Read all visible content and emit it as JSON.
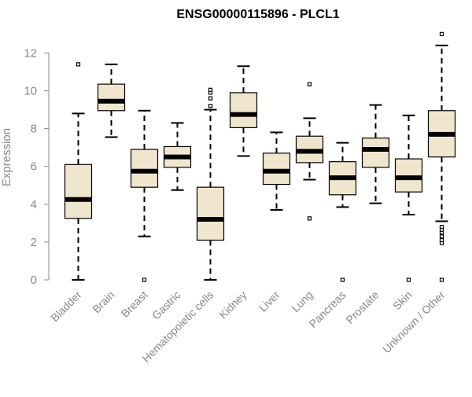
{
  "chart_data": {
    "type": "boxplot",
    "title": "ENSG00000115896 - PLCL1",
    "xlabel": "",
    "ylabel": "Expression",
    "ylim": [
      0,
      13
    ],
    "yticks": [
      0,
      2,
      4,
      6,
      8,
      10,
      12
    ],
    "ytick_labels": [
      "0",
      "2",
      "4",
      "6",
      "8",
      "10",
      "12"
    ],
    "categories": [
      "Bladder",
      "Brain",
      "Breast",
      "Gastric",
      "Hematopoietic cells",
      "Kidney",
      "Liver",
      "Lung",
      "Pancreas",
      "Prostate",
      "Skin",
      "Unknown / Other"
    ],
    "boxes": [
      {
        "name": "Bladder",
        "whisker_low": 0.0,
        "q1": 3.25,
        "median": 4.25,
        "q3": 6.1,
        "whisker_high": 8.8,
        "outliers": [
          11.4
        ]
      },
      {
        "name": "Brain",
        "whisker_low": 7.55,
        "q1": 8.95,
        "median": 9.45,
        "q3": 10.35,
        "whisker_high": 11.4,
        "outliers": []
      },
      {
        "name": "Breast",
        "whisker_low": 2.3,
        "q1": 4.9,
        "median": 5.75,
        "q3": 6.9,
        "whisker_high": 8.95,
        "outliers": [
          0.0
        ]
      },
      {
        "name": "Gastric",
        "whisker_low": 4.75,
        "q1": 5.95,
        "median": 6.5,
        "q3": 7.05,
        "whisker_high": 8.3,
        "outliers": []
      },
      {
        "name": "Hematopoietic cells",
        "whisker_low": 0.0,
        "q1": 2.1,
        "median": 3.2,
        "q3": 4.9,
        "whisker_high": 9.0,
        "outliers": [
          9.2,
          9.6,
          9.9,
          10.05
        ]
      },
      {
        "name": "Kidney",
        "whisker_low": 6.55,
        "q1": 8.05,
        "median": 8.75,
        "q3": 9.9,
        "whisker_high": 11.3,
        "outliers": []
      },
      {
        "name": "Liver",
        "whisker_low": 3.7,
        "q1": 5.05,
        "median": 5.75,
        "q3": 6.7,
        "whisker_high": 7.8,
        "outliers": []
      },
      {
        "name": "Lung",
        "whisker_low": 5.3,
        "q1": 6.2,
        "median": 6.8,
        "q3": 7.6,
        "whisker_high": 8.55,
        "outliers": [
          3.25,
          10.35
        ]
      },
      {
        "name": "Pancreas",
        "whisker_low": 3.85,
        "q1": 4.5,
        "median": 5.4,
        "q3": 6.25,
        "whisker_high": 7.25,
        "outliers": [
          0.0
        ]
      },
      {
        "name": "Prostate",
        "whisker_low": 4.05,
        "q1": 5.95,
        "median": 6.9,
        "q3": 7.5,
        "whisker_high": 9.25,
        "outliers": []
      },
      {
        "name": "Skin",
        "whisker_low": 3.45,
        "q1": 4.65,
        "median": 5.4,
        "q3": 6.4,
        "whisker_high": 8.7,
        "outliers": [
          0.0
        ]
      },
      {
        "name": "Unknown / Other",
        "whisker_low": 3.1,
        "q1": 6.5,
        "median": 7.7,
        "q3": 8.95,
        "whisker_high": 12.4,
        "outliers": [
          0.0,
          1.95,
          2.1,
          2.3,
          2.5,
          2.65,
          2.8,
          13.0
        ]
      }
    ],
    "colors": {
      "box_fill": "#efe6cd",
      "box_stroke": "#000000",
      "median": "#000000",
      "axis": "#888888",
      "tick_text": "#888888"
    }
  }
}
